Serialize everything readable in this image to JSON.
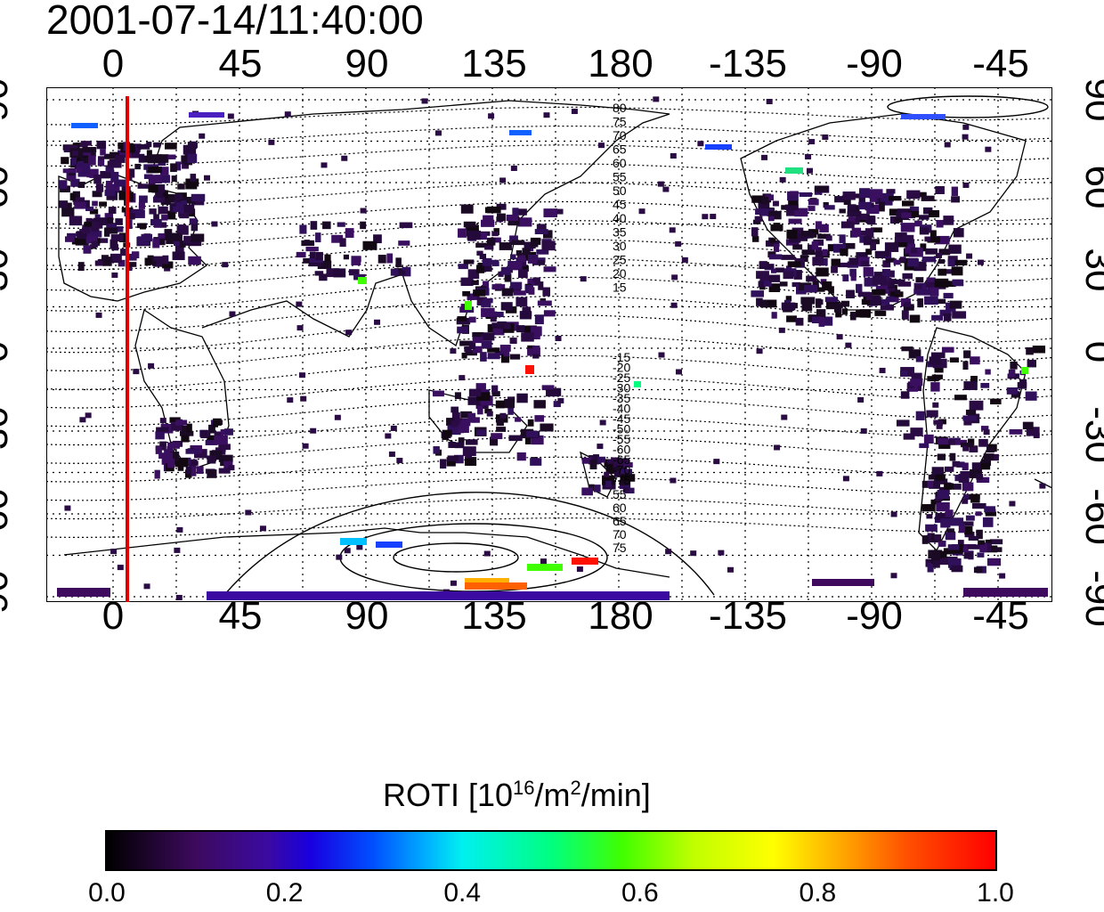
{
  "title": "2001-07-14/11:40:00",
  "map": {
    "lon_ticks": [
      "0",
      "45",
      "90",
      "135",
      "180",
      "-135",
      "-90",
      "-45"
    ],
    "lat_ticks": [
      "90",
      "60",
      "30",
      "0",
      "-30",
      "-60",
      "-90"
    ],
    "contour_labels_north": [
      "80",
      "75",
      "70",
      "65",
      "60",
      "55",
      "50",
      "45",
      "40",
      "35",
      "30",
      "25",
      "20",
      "15"
    ],
    "contour_labels_south": [
      "-15",
      "-20",
      "-25",
      "-30",
      "-35",
      "-40",
      "-45",
      "-50",
      "-55",
      "-60",
      "-65",
      "-70",
      "-75"
    ],
    "contour_labels_far_south": [
      "55",
      "60",
      "65",
      "70",
      "75"
    ],
    "marker_line_color": "#e00000",
    "grid": "dotted"
  },
  "colorbar": {
    "title_prefix": "ROTI  [10",
    "title_sup1": "16",
    "title_mid": "/m",
    "title_sup2": "2",
    "title_suffix": "/min]",
    "min": 0.0,
    "max": 1.0,
    "ticks": [
      "0.0",
      "0.2",
      "0.4",
      "0.6",
      "0.8",
      "1.0"
    ]
  }
}
